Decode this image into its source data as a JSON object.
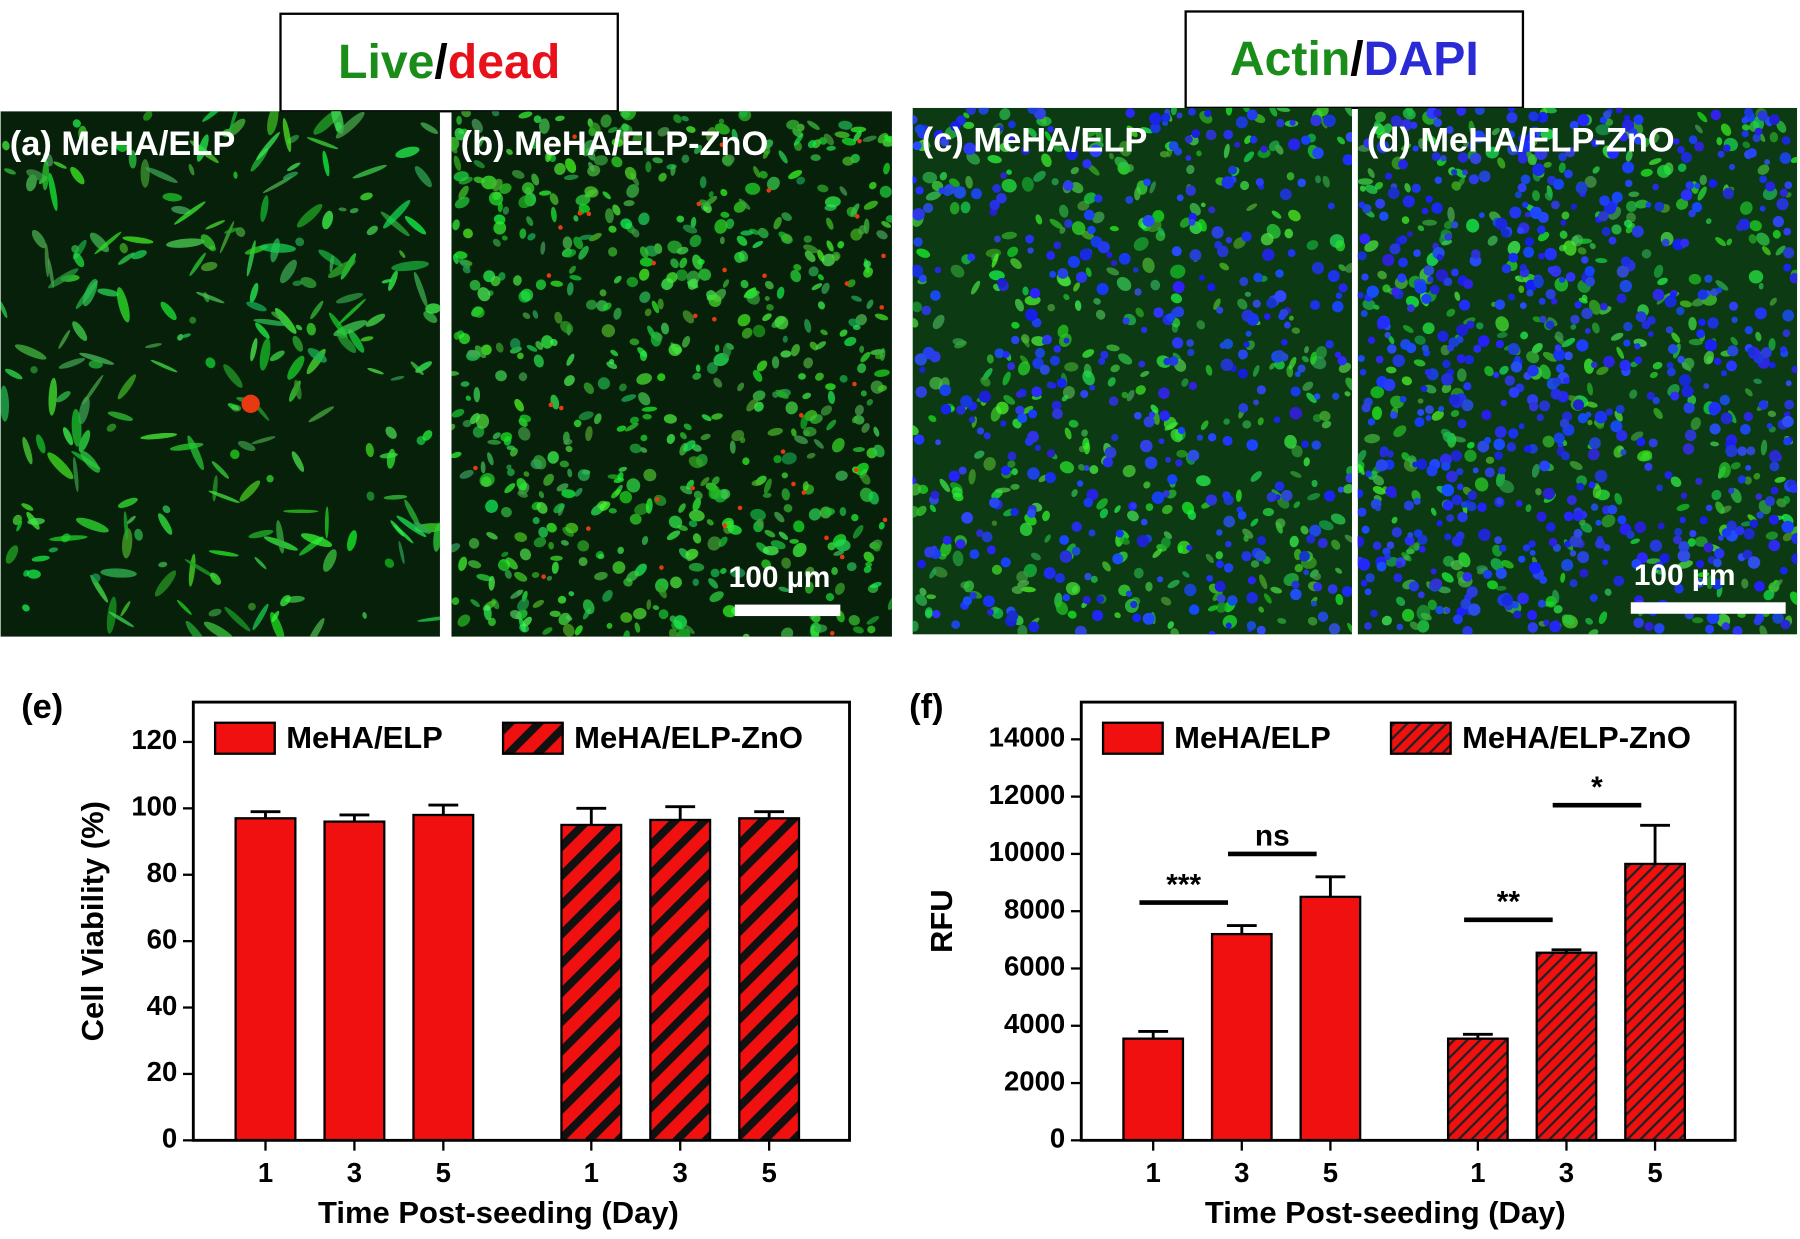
{
  "headers": [
    {
      "parts": [
        {
          "text": "Live",
          "color": "#1a8c1a"
        },
        {
          "text": "/",
          "color": "#000000"
        },
        {
          "text": "dead",
          "color": "#e8101a"
        }
      ]
    },
    {
      "parts": [
        {
          "text": "Actin",
          "color": "#1a8c1a"
        },
        {
          "text": "/",
          "color": "#000000"
        },
        {
          "text": "DAPI",
          "color": "#2b2bd6"
        }
      ]
    }
  ],
  "images": [
    {
      "label": "(a) MeHA/ELP",
      "stain": "live-dead"
    },
    {
      "label": "(b) MeHA/ELP-ZnO",
      "stain": "live-dead",
      "scale_bar": "100 µm"
    },
    {
      "label": "(c) MeHA/ELP",
      "stain": "actin-dapi"
    },
    {
      "label": "(d) MeHA/ELP-ZnO",
      "stain": "actin-dapi",
      "scale_bar": "100 µm"
    }
  ],
  "chart_data": [
    {
      "type": "bar",
      "panel_label": "(e)",
      "xlabel": "Time Post-seeding (Day)",
      "ylabel": "Cell Viability (%)",
      "categories": [
        "1",
        "3",
        "5"
      ],
      "series": [
        {
          "name": "MeHA/ELP",
          "color": "#f01010",
          "hatch": false,
          "values": [
            97,
            96,
            98
          ],
          "errors": [
            2,
            2,
            3
          ]
        },
        {
          "name": "MeHA/ELP-ZnO",
          "color": "#f01010",
          "hatch": true,
          "values": [
            95,
            96.5,
            97
          ],
          "errors": [
            5,
            4,
            2
          ]
        }
      ],
      "ylim": [
        0,
        132
      ],
      "yticks": [
        0,
        20,
        40,
        60,
        80,
        100,
        120
      ],
      "annotations": []
    },
    {
      "type": "bar",
      "panel_label": "(f)",
      "xlabel": "Time Post-seeding (Day)",
      "ylabel": "RFU",
      "categories": [
        "1",
        "3",
        "5"
      ],
      "series": [
        {
          "name": "MeHA/ELP",
          "color": "#f01010",
          "hatch": false,
          "values": [
            3550,
            7200,
            8500
          ],
          "errors": [
            250,
            300,
            700
          ]
        },
        {
          "name": "MeHA/ELP-ZnO",
          "color": "#f01010",
          "hatch": true,
          "values": [
            3550,
            6550,
            9650
          ],
          "errors": [
            150,
            100,
            1350
          ]
        }
      ],
      "ylim": [
        0,
        15300
      ],
      "yticks": [
        0,
        2000,
        4000,
        6000,
        8000,
        10000,
        12000,
        14000
      ],
      "annotations": [
        {
          "text": "***",
          "series": 0,
          "from": 0,
          "to": 1,
          "y": 8300
        },
        {
          "text": "ns",
          "series": 0,
          "from": 1,
          "to": 2,
          "y": 10000
        },
        {
          "text": "**",
          "series": 1,
          "from": 0,
          "to": 1,
          "y": 7700
        },
        {
          "text": "*",
          "series": 1,
          "from": 1,
          "to": 2,
          "y": 11700
        }
      ]
    }
  ]
}
